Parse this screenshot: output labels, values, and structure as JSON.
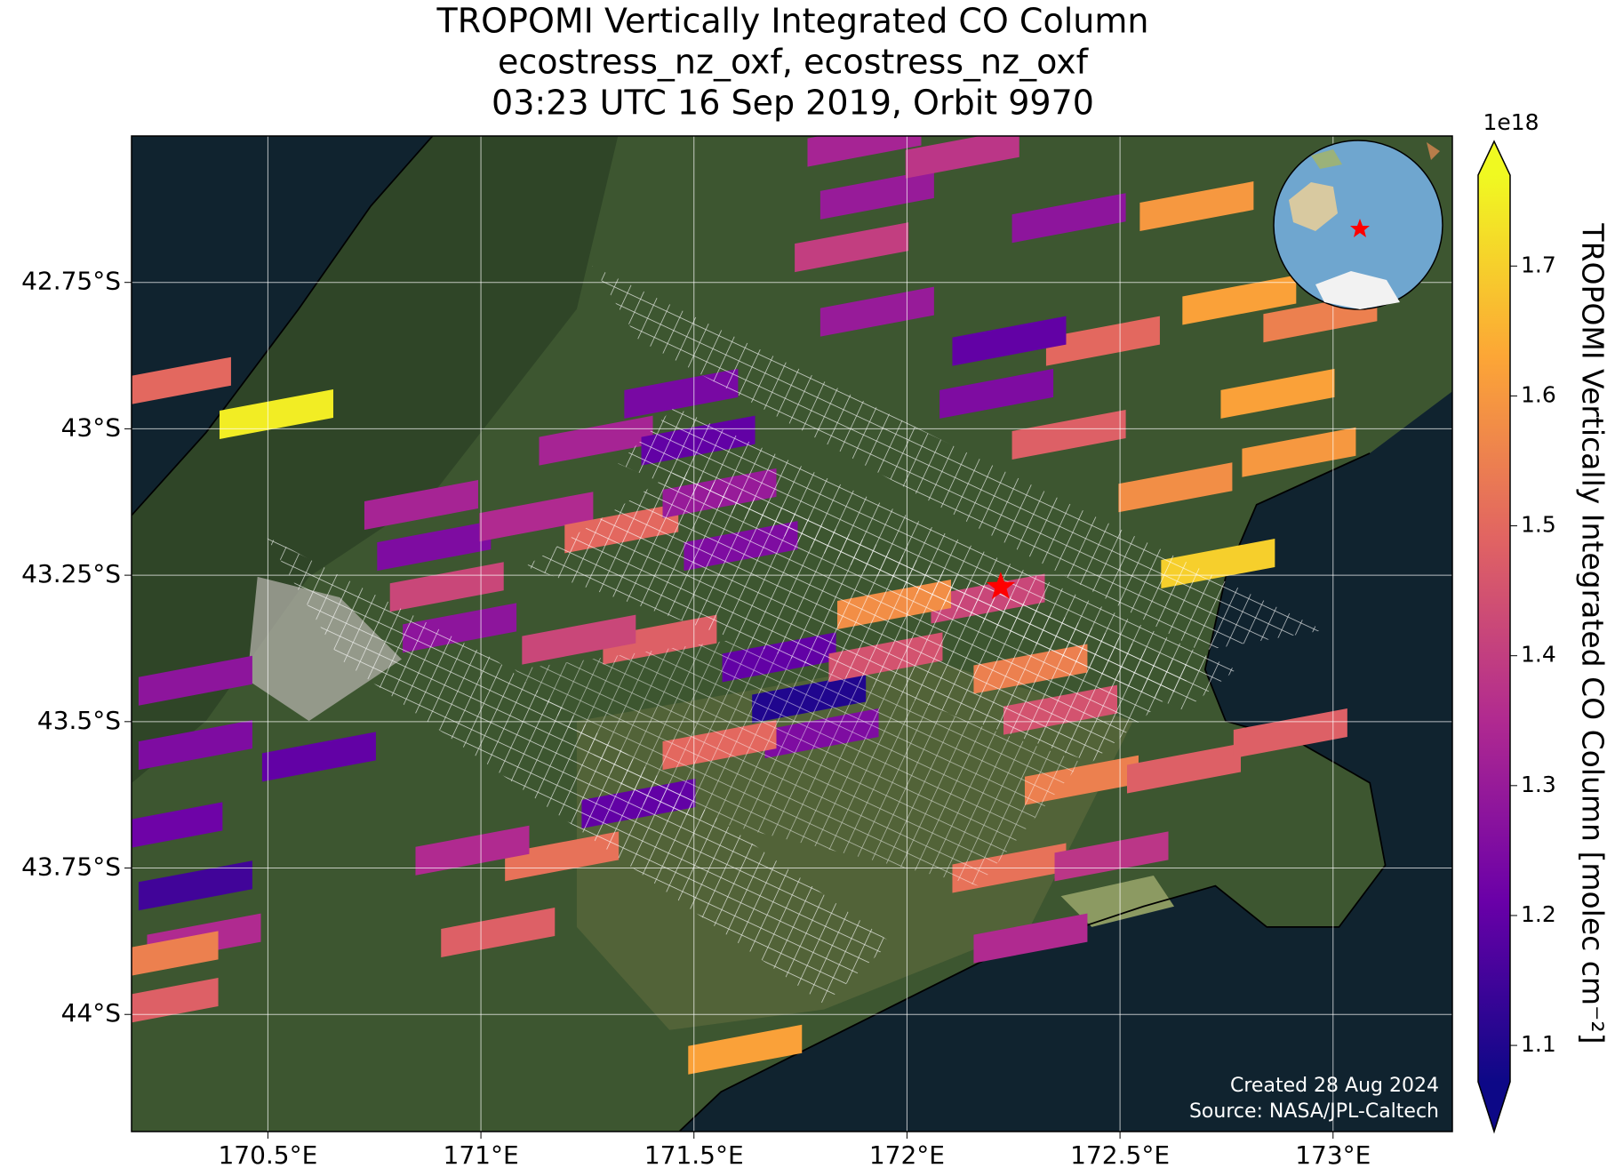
{
  "chart_data": {
    "type": "map",
    "title": [
      "TROPOMI Vertically Integrated CO Column",
      "ecostress_nz_oxf, ecostress_nz_oxf",
      "03:23 UTC 16 Sep 2019, Orbit 9970"
    ],
    "xlim": [
      170.18,
      173.28
    ],
    "ylim": [
      -44.2,
      -42.5
    ],
    "xticks": [
      {
        "value": 170.5,
        "label": "170.5°E"
      },
      {
        "value": 171,
        "label": "171°E"
      },
      {
        "value": 171.5,
        "label": "171.5°E"
      },
      {
        "value": 172,
        "label": "172°E"
      },
      {
        "value": 172.5,
        "label": "172.5°E"
      },
      {
        "value": 173,
        "label": "173°E"
      }
    ],
    "yticks": [
      {
        "value": -42.75,
        "label": "42.75°S"
      },
      {
        "value": -43,
        "label": "43°S"
      },
      {
        "value": -43.25,
        "label": "43.25°S"
      },
      {
        "value": -43.5,
        "label": "43.5°S"
      },
      {
        "value": -43.75,
        "label": "43.75°S"
      },
      {
        "value": -44,
        "label": "44°S"
      }
    ],
    "grid": true,
    "colormap": [
      "#0d0887",
      "#6a00a8",
      "#b12a90",
      "#e16462",
      "#fca636",
      "#f0f921"
    ],
    "clim": [
      1.072,
      1.77
    ],
    "colorbar_ticks": [
      1.1,
      1.2,
      1.3,
      1.4,
      1.5,
      1.6,
      1.7
    ],
    "colorbar_scale": "1e18",
    "colorbar_label": "TROPOMI Vertically Integrated CO Column [molec cm⁻²]",
    "lon": [
      170.28,
      170.52,
      170.86,
      170.89,
      170.92,
      170.95,
      171.13,
      171.27,
      171.33,
      171.47,
      171.51,
      171.56,
      171.61,
      171.7,
      171.77,
      171.8,
      171.56,
      171.37,
      171.19,
      170.98,
      170.62,
      170.33,
      170.33,
      170.26,
      170.33,
      170.35,
      171.04,
      170.25,
      170.25,
      171.9,
      171.93,
      172.13,
      172.68,
      172.78,
      172.97,
      172.87,
      172.92,
      172.63,
      172.73,
      172.46,
      172.38,
      172.21,
      172.24,
      172.38,
      171.87,
      171.93,
      172.19,
      172.29,
      172.36,
      172.41,
      172.65,
      172.9,
      172.24,
      172.48,
      172.29,
      171.62,
      171.95,
      171.97,
      171.42,
      171.23
    ],
    "lat": [
      -42.92,
      -42.975,
      -43.13,
      -43.2,
      -43.27,
      -43.34,
      -43.15,
      -43.02,
      -43.17,
      -42.94,
      -43.02,
      -43.11,
      -43.2,
      -43.39,
      -43.46,
      -43.52,
      -43.54,
      -43.64,
      -43.73,
      -43.72,
      -43.56,
      -43.43,
      -43.54,
      -43.68,
      -43.78,
      -43.87,
      -43.86,
      -43.9,
      -43.98,
      -42.51,
      -42.6,
      -42.53,
      -42.62,
      -42.78,
      -42.81,
      -42.94,
      -43.04,
      -43.1,
      -43.23,
      -42.85,
      -43.01,
      -42.94,
      -42.85,
      -42.64,
      -42.69,
      -42.8,
      -43.29,
      -43.41,
      -43.48,
      -43.6,
      -43.58,
      -43.52,
      -43.75,
      -43.73,
      -43.87,
      -44.06,
      -43.39,
      -43.3,
      -43.36,
      -43.36
    ],
    "values": [
      1.5,
      1.75,
      1.33,
      1.25,
      1.42,
      1.28,
      1.35,
      1.33,
      1.5,
      1.24,
      1.2,
      1.3,
      1.25,
      1.2,
      1.1,
      1.25,
      1.5,
      1.2,
      1.52,
      1.35,
      1.2,
      1.28,
      1.25,
      1.22,
      1.15,
      1.35,
      1.48,
      1.55,
      1.48,
      1.33,
      1.3,
      1.38,
      1.6,
      1.62,
      1.55,
      1.62,
      1.6,
      1.58,
      1.7,
      1.5,
      1.48,
      1.25,
      1.2,
      1.28,
      1.4,
      1.3,
      1.42,
      1.55,
      1.45,
      1.55,
      1.48,
      1.48,
      1.52,
      1.38,
      1.35,
      1.62,
      1.45,
      1.58,
      1.48,
      1.42
    ],
    "site": [
      172.22,
      -43.27
    ],
    "footer": [
      "Created 28 Aug 2024",
      "Source: NASA/JPL-Caltech"
    ]
  }
}
